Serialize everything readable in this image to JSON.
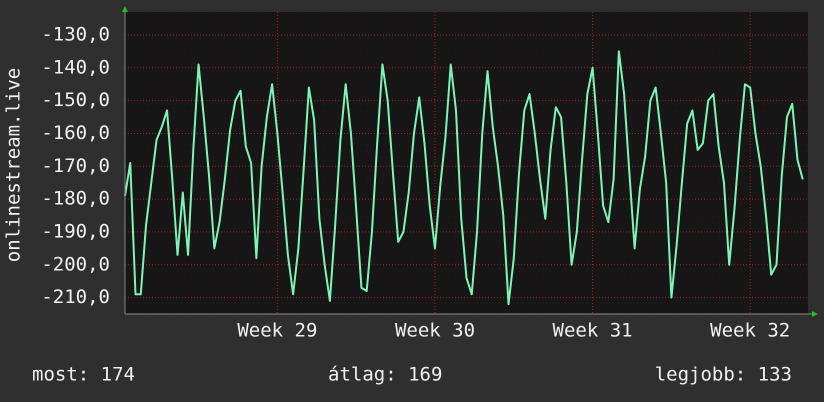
{
  "chart_data": {
    "type": "line",
    "y_label": "onlinestream.live",
    "series": [
      {
        "name": "onlinestream.live",
        "color": "#7df5b8",
        "values": [
          -179,
          -169,
          -209,
          -209,
          -188,
          -175,
          -162,
          -158,
          -153,
          -174,
          -197,
          -178,
          -197,
          -165,
          -139,
          -155,
          -173,
          -195,
          -187,
          -174,
          -159,
          -150,
          -147,
          -164,
          -169,
          -198,
          -170,
          -155,
          -145,
          -160,
          -178,
          -197,
          -209,
          -195,
          -171,
          -146,
          -156,
          -186,
          -200,
          -211,
          -188,
          -162,
          -145,
          -160,
          -183,
          -207,
          -208,
          -190,
          -163,
          -139,
          -150,
          -172,
          -193,
          -190,
          -178,
          -160,
          -149,
          -163,
          -182,
          -195,
          -176,
          -161,
          -139,
          -153,
          -186,
          -204,
          -209,
          -190,
          -160,
          -141,
          -158,
          -170,
          -185,
          -212,
          -198,
          -172,
          -153,
          -148,
          -160,
          -174,
          -186,
          -165,
          -152,
          -155,
          -175,
          -200,
          -190,
          -168,
          -148,
          -140,
          -160,
          -182,
          -187,
          -174,
          -135,
          -148,
          -172,
          -195,
          -177,
          -167,
          -150,
          -146,
          -160,
          -175,
          -210,
          -194,
          -175,
          -157,
          -153,
          -165,
          -163,
          -150,
          -148,
          -164,
          -175,
          -200,
          -183,
          -162,
          -145,
          -146,
          -160,
          -170,
          -185,
          -203,
          -200,
          -173,
          -155,
          -151,
          -168,
          -174
        ]
      }
    ],
    "xlim": [
      0,
      130
    ],
    "xticks": [
      {
        "value": 29,
        "label": "Week 29"
      },
      {
        "value": 59,
        "label": "Week 30"
      },
      {
        "value": 89,
        "label": "Week 31"
      },
      {
        "value": 119,
        "label": "Week 32"
      }
    ],
    "ylim": [
      -215,
      -123
    ],
    "yticks": [
      {
        "value": -130,
        "label": "-130,0"
      },
      {
        "value": -140,
        "label": "-140,0"
      },
      {
        "value": -150,
        "label": "-150,0"
      },
      {
        "value": -160,
        "label": "-160,0"
      },
      {
        "value": -170,
        "label": "-170,0"
      },
      {
        "value": -180,
        "label": "-180,0"
      },
      {
        "value": -190,
        "label": "-190,0"
      },
      {
        "value": -200,
        "label": "-200,0"
      },
      {
        "value": -210,
        "label": "-210,0"
      }
    ],
    "grid": true,
    "footer": {
      "current": "most: 174",
      "average": "átlag: 169",
      "best": "legjobb: 133"
    }
  }
}
